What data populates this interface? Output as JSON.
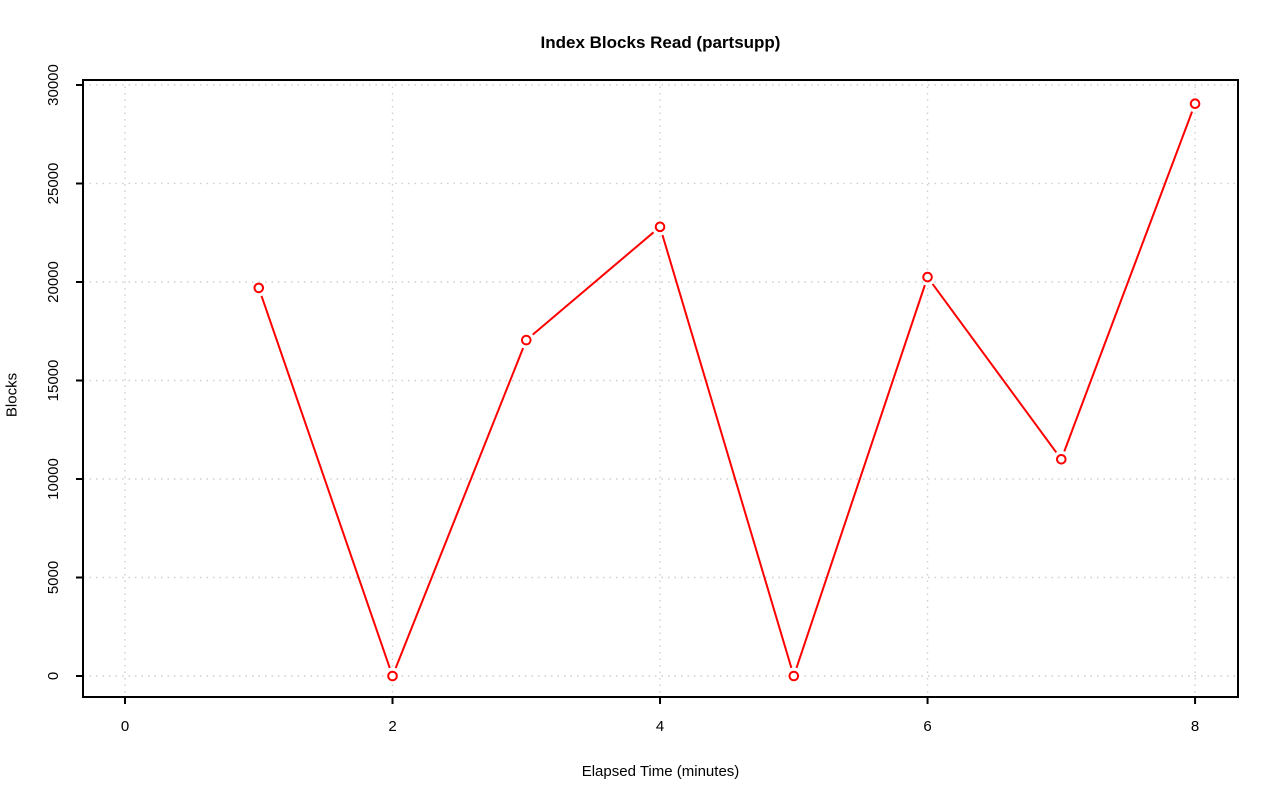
{
  "page": {
    "background": "#ffffff"
  },
  "chart_data": {
    "type": "line",
    "title": "Index Blocks Read (partsupp)",
    "xlabel": "Elapsed Time (minutes)",
    "ylabel": "Blocks",
    "x": [
      1,
      2,
      3,
      4,
      5,
      6,
      7,
      8
    ],
    "series": [
      {
        "name": "index-blocks-read",
        "values": [
          19700,
          0,
          17050,
          22800,
          0,
          20250,
          11000,
          29050
        ]
      }
    ],
    "xticks": [
      0,
      2,
      4,
      6,
      8
    ],
    "yticks": [
      0,
      5000,
      10000,
      15000,
      20000,
      25000,
      30000
    ],
    "xlim": [
      -0.314,
      8.321
    ],
    "ylim": [
      -1066,
      30253
    ],
    "grid": true,
    "grid_style": "dotted",
    "legend": "none",
    "marker": "open-circle",
    "line_color": "#ff0000",
    "marker_fill": "#ffffff",
    "grid_color": "#cfcfcf",
    "axis_color": "#000000",
    "text_color": "#000000"
  }
}
